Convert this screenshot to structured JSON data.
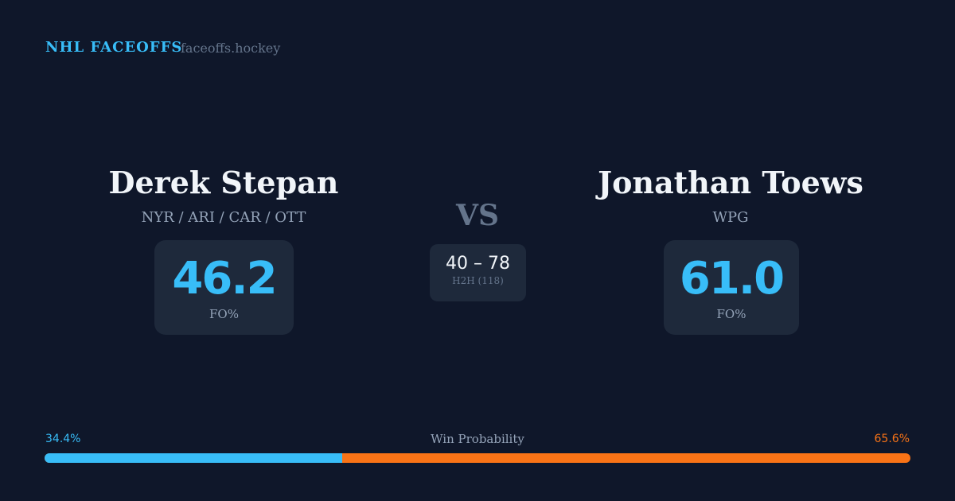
{
  "header": {
    "brand": "NHL FACEOFFS",
    "site": "faceoffs.hockey"
  },
  "player1": {
    "name": "Derek Stepan",
    "teams": "NYR / ARI / CAR / OTT",
    "fo_pct": "46.2",
    "fo_label": "FO%"
  },
  "player2": {
    "name": "Jonathan Toews",
    "teams": "WPG",
    "fo_pct": "61.0",
    "fo_label": "FO%"
  },
  "vs": "VS",
  "h2h": {
    "score": "40 – 78",
    "label": "H2H (118)"
  },
  "win_probability": {
    "label": "Win Probability",
    "left": "34.4%",
    "right": "65.6%",
    "left_value": 34.4,
    "left_color": "#38bdf8",
    "right_color": "#f97316"
  }
}
